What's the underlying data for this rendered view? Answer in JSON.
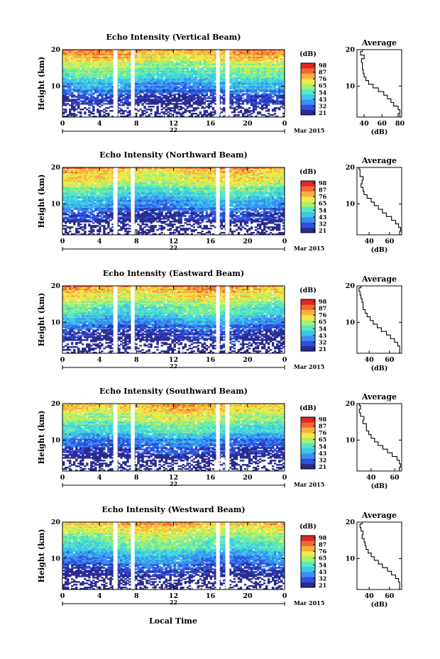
{
  "chart_data": {
    "type": "heatmap",
    "date_label": "Mar 2015",
    "day_label": "22",
    "xlabel": "Local Time",
    "ylabel": "Height (km)",
    "x_ticks": [
      "0",
      "4",
      "8",
      "12",
      "16",
      "20",
      "0"
    ],
    "x_tick_values": [
      0,
      4,
      8,
      12,
      16,
      20,
      24
    ],
    "y_ticks": [
      "10",
      "20"
    ],
    "y_tick_values": [
      10,
      20
    ],
    "xlim": [
      0,
      24
    ],
    "ylim": [
      1.5,
      20
    ],
    "data_gaps_hours": [
      [
        5.5,
        5.95
      ],
      [
        7.4,
        7.8
      ],
      [
        16.6,
        17.0
      ],
      [
        17.6,
        18.05
      ]
    ],
    "colorbar": {
      "unit": "(dB)",
      "colors": [
        "#2b2b90",
        "#3050e0",
        "#3a8ff0",
        "#3cc8e8",
        "#58e8c0",
        "#a8f070",
        "#f0e848",
        "#f8b040",
        "#f06a30",
        "#e02828"
      ]
    },
    "average_panel": {
      "title": "Average",
      "xlabel": "(dB)",
      "y_ticks": [
        "10",
        "20"
      ],
      "y_tick_values": [
        10,
        20
      ],
      "ylim": [
        1.5,
        20
      ]
    },
    "panels": [
      {
        "title": "Echo Intensity (Vertical Beam)",
        "colorbar_labels": [
          "98",
          "87",
          "76",
          "65",
          "54",
          "43",
          "32",
          "21"
        ],
        "avg_ticks": [
          "40",
          "60",
          "80"
        ],
        "avg_tick_values": [
          40,
          60,
          80
        ],
        "avg_xlim": [
          32,
          82
        ],
        "profile": {
          "height": [
            2.0,
            3.0,
            4.0,
            5.0,
            6.0,
            7.0,
            8.0,
            9.0,
            10.0,
            11.0,
            12.0,
            13.0,
            14.0,
            15.0,
            16.0,
            17.0,
            18.0,
            19.0,
            20.0
          ],
          "db": [
            78,
            80,
            78,
            73,
            70,
            66,
            62,
            56,
            50,
            45,
            42,
            40,
            39,
            38,
            38,
            37,
            40,
            36,
            38
          ]
        }
      },
      {
        "title": "Echo Intensity (Northward Beam)",
        "colorbar_labels": [
          "98",
          "87",
          "76",
          "65",
          "54",
          "43",
          "32",
          "21"
        ],
        "avg_ticks": [
          "40",
          "60"
        ],
        "avg_tick_values": [
          40,
          60
        ],
        "avg_xlim": [
          28,
          72
        ],
        "profile": {
          "height": [
            2.0,
            3.0,
            4.0,
            5.0,
            6.0,
            7.0,
            8.0,
            9.0,
            10.0,
            11.0,
            12.0,
            13.0,
            14.0,
            15.0,
            16.0,
            17.0,
            18.0,
            19.0,
            20.0
          ],
          "db": [
            70,
            71,
            69,
            66,
            62,
            57,
            53,
            49,
            45,
            42,
            38,
            35,
            34,
            32,
            33,
            34,
            31,
            31,
            30
          ]
        }
      },
      {
        "title": "Echo Intensity (Eastward Beam)",
        "colorbar_labels": [
          "98",
          "87",
          "76",
          "65",
          "54",
          "43",
          "32",
          "21"
        ],
        "avg_ticks": [
          "40",
          "60"
        ],
        "avg_tick_values": [
          40,
          60
        ],
        "avg_xlim": [
          28,
          72
        ],
        "profile": {
          "height": [
            2.0,
            3.0,
            4.0,
            5.0,
            6.0,
            7.0,
            8.0,
            9.0,
            10.0,
            11.0,
            12.0,
            13.0,
            14.0,
            15.0,
            16.0,
            17.0,
            18.0,
            19.0,
            20.0
          ],
          "db": [
            70,
            70,
            68,
            65,
            61,
            57,
            52,
            48,
            44,
            41,
            38,
            36,
            34,
            34,
            33,
            32,
            31,
            30,
            32
          ]
        }
      },
      {
        "title": "Echo Intensity (Southward Beam)",
        "colorbar_labels": [
          "98",
          "87",
          "76",
          "65",
          "54",
          "43",
          "32",
          "21"
        ],
        "avg_ticks": [
          "40",
          "60"
        ],
        "avg_tick_values": [
          40,
          60
        ],
        "avg_xlim": [
          28,
          66
        ],
        "profile": {
          "height": [
            2.0,
            3.0,
            4.0,
            5.0,
            6.0,
            7.0,
            8.0,
            9.0,
            10.0,
            11.0,
            12.0,
            13.0,
            14.0,
            15.0,
            16.0,
            17.0,
            18.0,
            19.0,
            20.0
          ],
          "db": [
            64,
            65,
            64,
            62,
            58,
            54,
            50,
            46,
            43,
            40,
            38,
            36,
            36,
            33,
            34,
            31,
            30,
            31,
            30
          ]
        }
      },
      {
        "title": "Echo Intensity (Westward Beam)",
        "colorbar_labels": [
          "98",
          "87",
          "76",
          "65",
          "54",
          "43",
          "32",
          "21"
        ],
        "avg_ticks": [
          "40",
          "60"
        ],
        "avg_tick_values": [
          40,
          60
        ],
        "avg_xlim": [
          28,
          72
        ],
        "profile": {
          "height": [
            2.0,
            3.0,
            4.0,
            5.0,
            6.0,
            7.0,
            8.0,
            9.0,
            10.0,
            11.0,
            12.0,
            13.0,
            14.0,
            15.0,
            16.0,
            17.0,
            18.0,
            19.0,
            20.0
          ],
          "db": [
            70,
            70,
            69,
            66,
            62,
            58,
            53,
            49,
            45,
            42,
            39,
            37,
            36,
            35,
            33,
            34,
            32,
            31,
            33
          ]
        }
      }
    ]
  }
}
